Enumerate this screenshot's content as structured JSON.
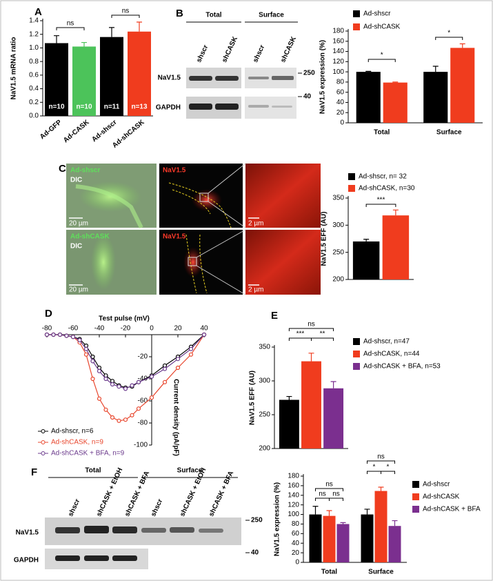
{
  "chart_data": [
    {
      "panel": "A",
      "type": "bar",
      "y_label": "NaV1.5 mRNA ratio",
      "categories": [
        "Ad-GFP",
        "Ad-CASK",
        "Ad-shscr",
        "Ad-shCASK"
      ],
      "values": [
        1.07,
        1.02,
        1.16,
        1.24
      ],
      "errors": [
        0.11,
        0.06,
        0.14,
        0.14
      ],
      "colors": [
        "#000000",
        "#4cc35a",
        "#000000",
        "#f03c1e"
      ],
      "bar_labels": [
        "n=10",
        "n=10",
        "n=11",
        "n=13"
      ],
      "ylim": [
        0,
        1.4
      ],
      "yticks": [
        {
          "value": 0,
          "label": "0.0"
        },
        0.2,
        0.4,
        0.6,
        0.8,
        {
          "value": 1,
          "label": "1.0"
        },
        1.2,
        1.4
      ],
      "annotations": [
        "ns",
        "ns"
      ]
    },
    {
      "type": "bar",
      "y_label": "NaV1.5 expression (%)",
      "categories": [
        "Total",
        "Surface"
      ],
      "series": [
        {
          "name": "Ad-shscr",
          "color": "#000000",
          "values": [
            100,
            100
          ],
          "errors": [
            1,
            11
          ]
        },
        {
          "name": "Ad-shCASK",
          "color": "#f03c1e",
          "values": [
            79,
            147
          ],
          "errors": [
            1,
            8
          ]
        }
      ],
      "ylim": [
        0,
        180
      ],
      "yticks": [
        0,
        20,
        40,
        60,
        80,
        100,
        120,
        140,
        160,
        180
      ],
      "annotations": [
        "*",
        "*"
      ]
    },
    {
      "type": "bar",
      "y_label": "NaV1.5 EFF (AU)",
      "series": [
        {
          "name": "Ad-shscr, n= 32",
          "color": "#000000",
          "values": [
            270
          ],
          "errors": [
            4
          ]
        },
        {
          "name": "Ad-shCASK, n=30",
          "color": "#f03c1e",
          "values": [
            318
          ],
          "errors": [
            10
          ]
        }
      ],
      "ylim": [
        200,
        350
      ],
      "yticks": [
        200,
        250,
        300,
        350
      ],
      "annotations": [
        "***"
      ]
    },
    {
      "panel": "D",
      "type": "line",
      "title": "Test pulse (mV)",
      "y_label": "Current density (pA/pF)",
      "x": [
        -80,
        -75,
        -70,
        -65,
        -60,
        -55,
        -50,
        -45,
        -40,
        -35,
        -30,
        -25,
        -20,
        -15,
        -10,
        0,
        10,
        20,
        30,
        40
      ],
      "series": [
        {
          "name": "Ad-shscr, n=6",
          "color": "#000000",
          "values": [
            0,
            0,
            0,
            -1,
            -2,
            -4,
            -10,
            -20,
            -30,
            -37,
            -42,
            -46,
            -48,
            -47,
            -43,
            -37,
            -28,
            -20,
            -11,
            0
          ]
        },
        {
          "name": "Ad-shCASK, n=9",
          "color": "#e8452c",
          "values": [
            0,
            0,
            0,
            -1,
            -2,
            -7,
            -18,
            -40,
            -58,
            -68,
            -75,
            -78,
            -77,
            -73,
            -67,
            -57,
            -43,
            -30,
            -18,
            0
          ]
        },
        {
          "name": "Ad-shCASK + BFA, n=9",
          "color": "#6b3a8c",
          "values": [
            0,
            0,
            0,
            -1,
            -2,
            -5,
            -13,
            -24,
            -33,
            -40,
            -45,
            -47,
            -49,
            -46,
            -43,
            -38,
            -31,
            -22,
            -13,
            0
          ]
        }
      ],
      "xlim": [
        -80,
        40
      ],
      "xticks": [
        -80,
        -60,
        -40,
        -20,
        0,
        20,
        40
      ],
      "ylim": [
        -100,
        0
      ],
      "yticks": [
        -20,
        -40,
        -60,
        -80,
        -100
      ]
    },
    {
      "panel": "E",
      "type": "bar",
      "y_label": "NaV1.5 EFF (AU)",
      "series": [
        {
          "name": "Ad-shscr, n=47",
          "color": "#000000",
          "values": [
            272
          ],
          "errors": [
            5
          ]
        },
        {
          "name": "Ad-shCASK, n=44",
          "color": "#f03c1e",
          "values": [
            329
          ],
          "errors": [
            12
          ]
        },
        {
          "name": "Ad-shCASK + BFA, n=53",
          "color": "#7b2f8f",
          "values": [
            289
          ],
          "errors": [
            10
          ]
        }
      ],
      "ylim": [
        200,
        350
      ],
      "yticks": [
        200,
        250,
        300,
        350
      ],
      "annotations": [
        "ns",
        "***",
        "**"
      ]
    },
    {
      "type": "bar",
      "y_label": "NaV1.5 expression (%)",
      "categories": [
        "Total",
        "Surface"
      ],
      "series": [
        {
          "name": "Ad-shscr",
          "color": "#000000",
          "values": [
            100,
            100
          ],
          "errors": [
            17,
            11
          ]
        },
        {
          "name": "Ad-shCASK",
          "color": "#f03c1e",
          "values": [
            97,
            149
          ],
          "errors": [
            11,
            8
          ]
        },
        {
          "name": "Ad-shCASK + BFA",
          "color": "#7b2f8f",
          "values": [
            80,
            76
          ],
          "errors": [
            3,
            11
          ]
        }
      ],
      "ylim": [
        0,
        180
      ],
      "yticks": [
        0,
        20,
        40,
        60,
        80,
        100,
        120,
        140,
        160,
        180
      ],
      "annotations": [
        "ns",
        "ns",
        "ns",
        "ns",
        "*",
        "*"
      ]
    }
  ],
  "blots": [
    {
      "panel": "B",
      "groups": [
        "Total",
        "Surface"
      ],
      "lanes": [
        "shscr",
        "shCASK",
        "shscr",
        "shCASK"
      ],
      "rows": [
        "NaV1.5",
        "GAPDH"
      ],
      "markers": [
        "250",
        "40"
      ]
    },
    {
      "panel": "F",
      "groups": [
        "Total",
        "Surface"
      ],
      "lanes": [
        "shscr",
        "shCASK + EtOH",
        "shCASK + BFA",
        "shscr",
        "shCASK + EtOH",
        "shCASK + BFA"
      ],
      "rows": [
        "NaV1.5",
        "GAPDH"
      ],
      "markers": [
        "250",
        "40"
      ]
    }
  ],
  "micrographs": {
    "panel": "C",
    "rows": [
      {
        "condition": "Ad-shscr",
        "channel": "DIC",
        "stain": "NaV1.5",
        "scale_bars": [
          "20 µm",
          "2 µm"
        ]
      },
      {
        "condition": "Ad-shCASK",
        "channel": "DIC",
        "stain": "NaV1.5",
        "scale_bars": [
          "20 µm",
          "2 µm"
        ]
      }
    ]
  }
}
